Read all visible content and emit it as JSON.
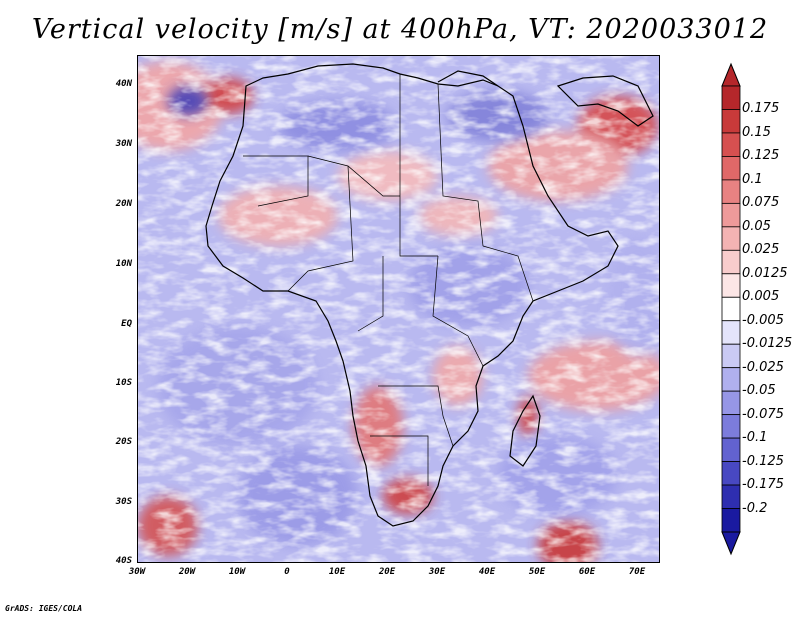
{
  "title": "Vertical velocity [m/s] at 400hPa, VT: 2020033012",
  "footer": "GrADS: IGES/COLA",
  "map": {
    "variable": "Vertical velocity",
    "units": "m/s",
    "level": "400hPa",
    "valid_time": "2020033012",
    "lon_range": [
      -30,
      75
    ],
    "lat_range": [
      -40,
      45
    ]
  },
  "axes": {
    "y_ticks": [
      "40N",
      "30N",
      "20N",
      "10N",
      "EQ",
      "10S",
      "20S",
      "30S",
      "40S"
    ],
    "x_ticks": [
      "30W",
      "20W",
      "10W",
      "0",
      "10E",
      "20E",
      "30E",
      "40E",
      "50E",
      "60E",
      "70E"
    ]
  },
  "colorbar": {
    "labels": [
      "0.175",
      "0.15",
      "0.125",
      "0.1",
      "0.075",
      "0.05",
      "0.025",
      "0.0125",
      "0.005",
      "-0.005",
      "-0.0125",
      "-0.025",
      "-0.05",
      "-0.075",
      "-0.1",
      "-0.125",
      "-0.175",
      "-0.2"
    ],
    "colors": [
      "#b5272b",
      "#c83a3a",
      "#d65050",
      "#e06868",
      "#e88282",
      "#ee9a9a",
      "#f3b3b3",
      "#f8cccc",
      "#fce6e6",
      "#ffffff",
      "#e4e4fb",
      "#cacaf4",
      "#b0b0ee",
      "#9696e6",
      "#7c7cdc",
      "#6262d0",
      "#4848c2",
      "#2e2eb0",
      "#1a1aa0"
    ]
  }
}
